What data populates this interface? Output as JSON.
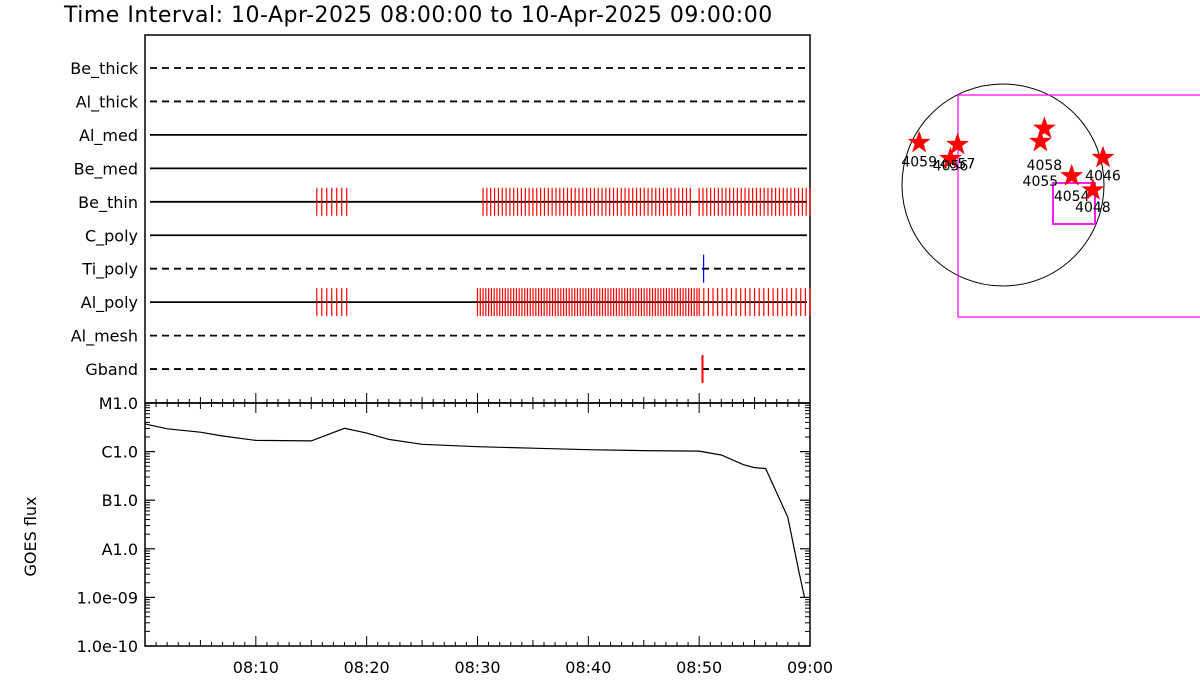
{
  "title": "Time Interval: 10-Apr-2025 08:00:00 to 10-Apr-2025 09:00:00",
  "colors": {
    "event": "#ff0000",
    "tick_blue": "#0000ff",
    "box": "#ff00ff",
    "axis": "#000000"
  },
  "chart_data": [
    {
      "type": "timeline",
      "x_range_min": [
        0,
        60
      ],
      "channels": [
        {
          "name": "Be_thick",
          "style": "dashed",
          "events": []
        },
        {
          "name": "Al_thick",
          "style": "dashed",
          "events": []
        },
        {
          "name": "Al_med",
          "style": "solid",
          "events": []
        },
        {
          "name": "Be_med",
          "style": "solid",
          "events": []
        },
        {
          "name": "Be_thin",
          "style": "solid",
          "events": [
            {
              "from": 15.5,
              "to": 18.2,
              "count": 7
            },
            {
              "from": 30.5,
              "to": 49.2,
              "count": 55
            },
            {
              "from": 50.0,
              "to": 60.0,
              "count": 30
            }
          ]
        },
        {
          "name": "C_poly",
          "style": "solid",
          "events": []
        },
        {
          "name": "Ti_poly",
          "style": "dashed",
          "events": [
            {
              "at": 50.4,
              "color": "blue"
            }
          ]
        },
        {
          "name": "Al_poly",
          "style": "solid",
          "events": [
            {
              "from": 15.5,
              "to": 18.2,
              "count": 7
            },
            {
              "from": 30.0,
              "to": 49.8,
              "count": 80
            },
            {
              "from": 50.0,
              "to": 60.0,
              "count": 25
            }
          ]
        },
        {
          "name": "Al_mesh",
          "style": "dashed",
          "events": []
        },
        {
          "name": "Gband",
          "style": "dashed",
          "events": [
            {
              "at": 50.3,
              "color": "red"
            }
          ]
        }
      ]
    },
    {
      "type": "line",
      "ylabel": "GOES flux",
      "y_ticks": [
        "M1.0",
        "C1.0",
        "B1.0",
        "A1.0",
        "1.0e-09",
        "1.0e-10"
      ],
      "x_ticks": [
        "08:10",
        "08:20",
        "08:30",
        "08:40",
        "08:50",
        "09:00"
      ],
      "x_ticks_min": [
        10,
        20,
        30,
        40,
        50,
        60
      ],
      "xlim_min": [
        0,
        60
      ],
      "ylim_log10": [
        -10,
        -5
      ],
      "series": [
        {
          "x_min": [
            0,
            2,
            5,
            7,
            10,
            15,
            18,
            20,
            22,
            25,
            30,
            35,
            40,
            45,
            50,
            52,
            54,
            55,
            56,
            58,
            59,
            59.5
          ],
          "log10_flux": [
            -5.43,
            -5.53,
            -5.6,
            -5.68,
            -5.77,
            -5.78,
            -5.52,
            -5.62,
            -5.75,
            -5.85,
            -5.9,
            -5.93,
            -5.96,
            -5.98,
            -5.99,
            -6.07,
            -6.27,
            -6.33,
            -6.35,
            -7.35,
            -8.47,
            -9.0
          ]
        }
      ]
    },
    {
      "type": "scatter",
      "description_values": "active region locations on solar disk",
      "regions": [
        {
          "label": "4059",
          "x": -0.83,
          "y": 0.42
        },
        {
          "label": "4057",
          "x": -0.45,
          "y": 0.4
        },
        {
          "label": "4056",
          "x": -0.52,
          "y": 0.26
        },
        {
          "label": "4058",
          "x": 0.41,
          "y": 0.56
        },
        {
          "label": "4055",
          "x": 0.37,
          "y": 0.43
        },
        {
          "label": "4046",
          "x": 0.99,
          "y": 0.27
        },
        {
          "label": "4054",
          "x": 0.68,
          "y": 0.09
        },
        {
          "label": "4048",
          "x": 0.89,
          "y": -0.05
        }
      ]
    }
  ]
}
